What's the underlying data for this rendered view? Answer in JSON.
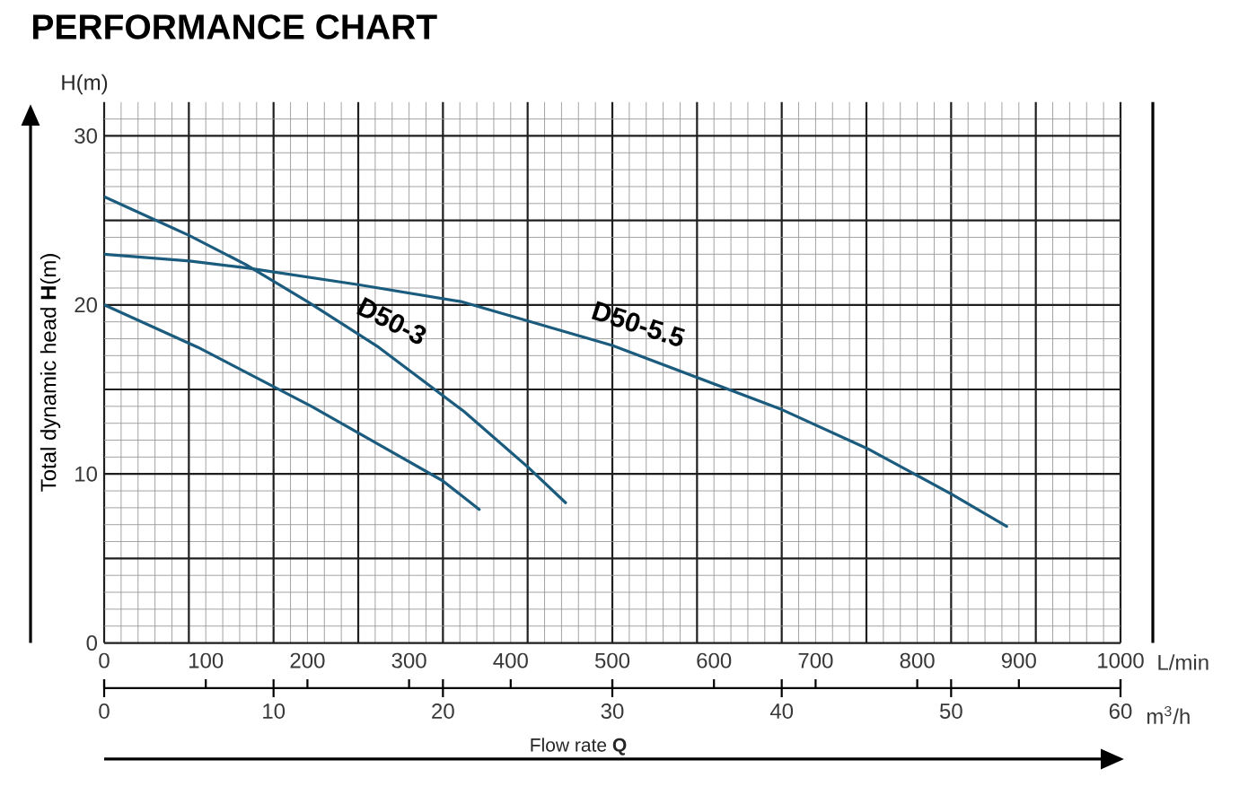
{
  "chart_data": {
    "type": "line",
    "title": "PERFORMANCE CHART",
    "xlabel": "L/min",
    "x2label": "m$^{3}$/h",
    "ylabel": "Total dynamic head **H**(m)",
    "annotations": [
      "H(m)",
      "Flow rate **Q**"
    ],
    "xlim": [
      0,
      1000
    ],
    "xticks": [
      0,
      100,
      200,
      300,
      400,
      500,
      600,
      700,
      800,
      900,
      1000
    ],
    "x2lim": [
      0,
      60
    ],
    "x2ticks": [
      0,
      10,
      20,
      30,
      40,
      50,
      60
    ],
    "ylim": [
      0,
      32
    ],
    "yticks": [
      0,
      10,
      20,
      30
    ],
    "grid": true,
    "series": [
      {
        "name": "D50-3",
        "color": "#1b5c7e",
        "x": [
          0,
          84,
          139,
          200,
          270,
          354,
          417,
          454
        ],
        "values": [
          26.4,
          24.1,
          22.4,
          20.2,
          17.5,
          13.7,
          10.4,
          8.3
        ]
      },
      {
        "name": "D50-5.5",
        "color": "#1b5c7e",
        "x": [
          0,
          84,
          139,
          250,
          351,
          500,
          667,
          751,
          834,
          888
        ],
        "values": [
          23.0,
          22.6,
          22.2,
          21.2,
          20.2,
          17.6,
          13.8,
          11.5,
          8.8,
          6.9
        ]
      },
      {
        "color": "#1b5c7e",
        "x": [
          0,
          92,
          204,
          333,
          369
        ],
        "values": [
          20.0,
          17.5,
          14.0,
          9.6,
          7.9
        ]
      }
    ]
  }
}
